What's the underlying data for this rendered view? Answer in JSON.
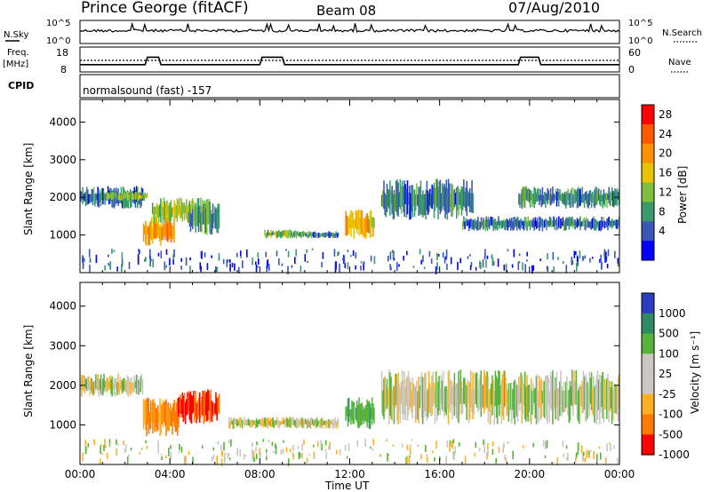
{
  "header": {
    "station": "Prince George (fitACF)",
    "beam": "Beam 08",
    "date": "07/Aug/2010"
  },
  "top_panels": {
    "nsky_label": "N.Sky",
    "nsky_ticks": [
      "10^5",
      "10^0"
    ],
    "nsearch_label": "N.Search",
    "nsearch_ticks": [
      "10^5",
      "10^0"
    ],
    "freq_label": "Freq.",
    "freq_unit": "[MHz]",
    "freq_ticks": [
      "18",
      "8"
    ],
    "nave_label": "Nave",
    "nave_ticks": [
      "60",
      "0"
    ],
    "cpid_label": "CPID",
    "cpid_text": "normalsound (fast) -157",
    "freq_series": {
      "x_hours": [
        0,
        2.9,
        3.0,
        3.5,
        3.6,
        8.0,
        8.1,
        9.0,
        9.1,
        19.5,
        19.6,
        20.4,
        20.5,
        24
      ],
      "mhz": [
        11,
        11,
        14.5,
        14.5,
        11,
        11,
        14.5,
        14.5,
        11,
        11,
        14.5,
        14.5,
        11,
        11
      ]
    }
  },
  "chart_data": [
    {
      "type": "heatmap",
      "title": "Power",
      "xlabel": "",
      "ylabel": "Slant Range [km]",
      "xlim_hours": [
        0,
        24
      ],
      "ylim_km": [
        0,
        4600
      ],
      "y_ticks": [
        "1000",
        "2000",
        "3000",
        "4000"
      ],
      "colorbar_label": "Power [dB]",
      "colorbar_ticks": [
        "28",
        "24",
        "20",
        "16",
        "12",
        "8",
        "4"
      ],
      "colorbar_colors": [
        "#ff0000",
        "#ff5a00",
        "#ff9000",
        "#e6c400",
        "#7fbf3f",
        "#3a9a6a",
        "#3a57b8",
        "#0000ff"
      ],
      "echo_regions": [
        {
          "t0": 0.0,
          "t1": 2.8,
          "r0": 1700,
          "r1": 2300,
          "dB": 8
        },
        {
          "t0": 1.2,
          "t1": 3.0,
          "r0": 1900,
          "r1": 2150,
          "dB": 14
        },
        {
          "t0": 2.8,
          "t1": 4.2,
          "r0": 700,
          "r1": 1500,
          "dB": 22
        },
        {
          "t0": 3.2,
          "t1": 5.8,
          "r0": 1300,
          "r1": 2000,
          "dB": 14
        },
        {
          "t0": 4.8,
          "t1": 6.2,
          "r0": 1000,
          "r1": 1900,
          "dB": 10
        },
        {
          "t0": 8.2,
          "t1": 10.0,
          "r0": 900,
          "r1": 1150,
          "dB": 12
        },
        {
          "t0": 10.0,
          "t1": 11.5,
          "r0": 900,
          "r1": 1100,
          "dB": 8
        },
        {
          "t0": 11.8,
          "t1": 13.1,
          "r0": 900,
          "r1": 1700,
          "dB": 20
        },
        {
          "t0": 13.4,
          "t1": 17.5,
          "r0": 1400,
          "r1": 2500,
          "dB": 8
        },
        {
          "t0": 17.0,
          "t1": 24.0,
          "r0": 1100,
          "r1": 1500,
          "dB": 8
        },
        {
          "t0": 19.5,
          "t1": 24.0,
          "r0": 1700,
          "r1": 2300,
          "dB": 8
        }
      ]
    },
    {
      "type": "heatmap",
      "title": "Velocity",
      "xlabel": "Time UT",
      "ylabel": "Slant Range [km]",
      "xlim_hours": [
        0,
        24
      ],
      "ylim_km": [
        0,
        4600
      ],
      "x_ticks": [
        "00:00",
        "04:00",
        "08:00",
        "12:00",
        "16:00",
        "20:00",
        "00:00"
      ],
      "y_ticks": [
        "1000",
        "2000",
        "3000",
        "4000"
      ],
      "colorbar_label": "Velocity [m s⁻¹]",
      "colorbar_ticks": [
        "1000",
        "500",
        "100",
        "25",
        "-25",
        "-100",
        "-500",
        "-1000"
      ],
      "colorbar_colors": [
        "#2a3fbf",
        "#2f8a66",
        "#57b33a",
        "#c8c8c0",
        "#c8c8c0",
        "#ffb020",
        "#ff7a00",
        "#ff0000"
      ],
      "echo_regions": [
        {
          "t0": 0.0,
          "t1": 2.8,
          "r0": 1700,
          "r1": 2300,
          "v": 0
        },
        {
          "t0": 2.8,
          "t1": 4.4,
          "r0": 700,
          "r1": 1700,
          "v": -400
        },
        {
          "t0": 4.3,
          "t1": 6.2,
          "r0": 1000,
          "r1": 1900,
          "v": -700
        },
        {
          "t0": 6.6,
          "t1": 11.5,
          "r0": 900,
          "r1": 1200,
          "v": 0
        },
        {
          "t0": 11.8,
          "t1": 13.1,
          "r0": 900,
          "r1": 1700,
          "v": 200
        },
        {
          "t0": 13.4,
          "t1": 24.0,
          "r0": 1000,
          "r1": 2400,
          "v": 0
        }
      ]
    }
  ]
}
